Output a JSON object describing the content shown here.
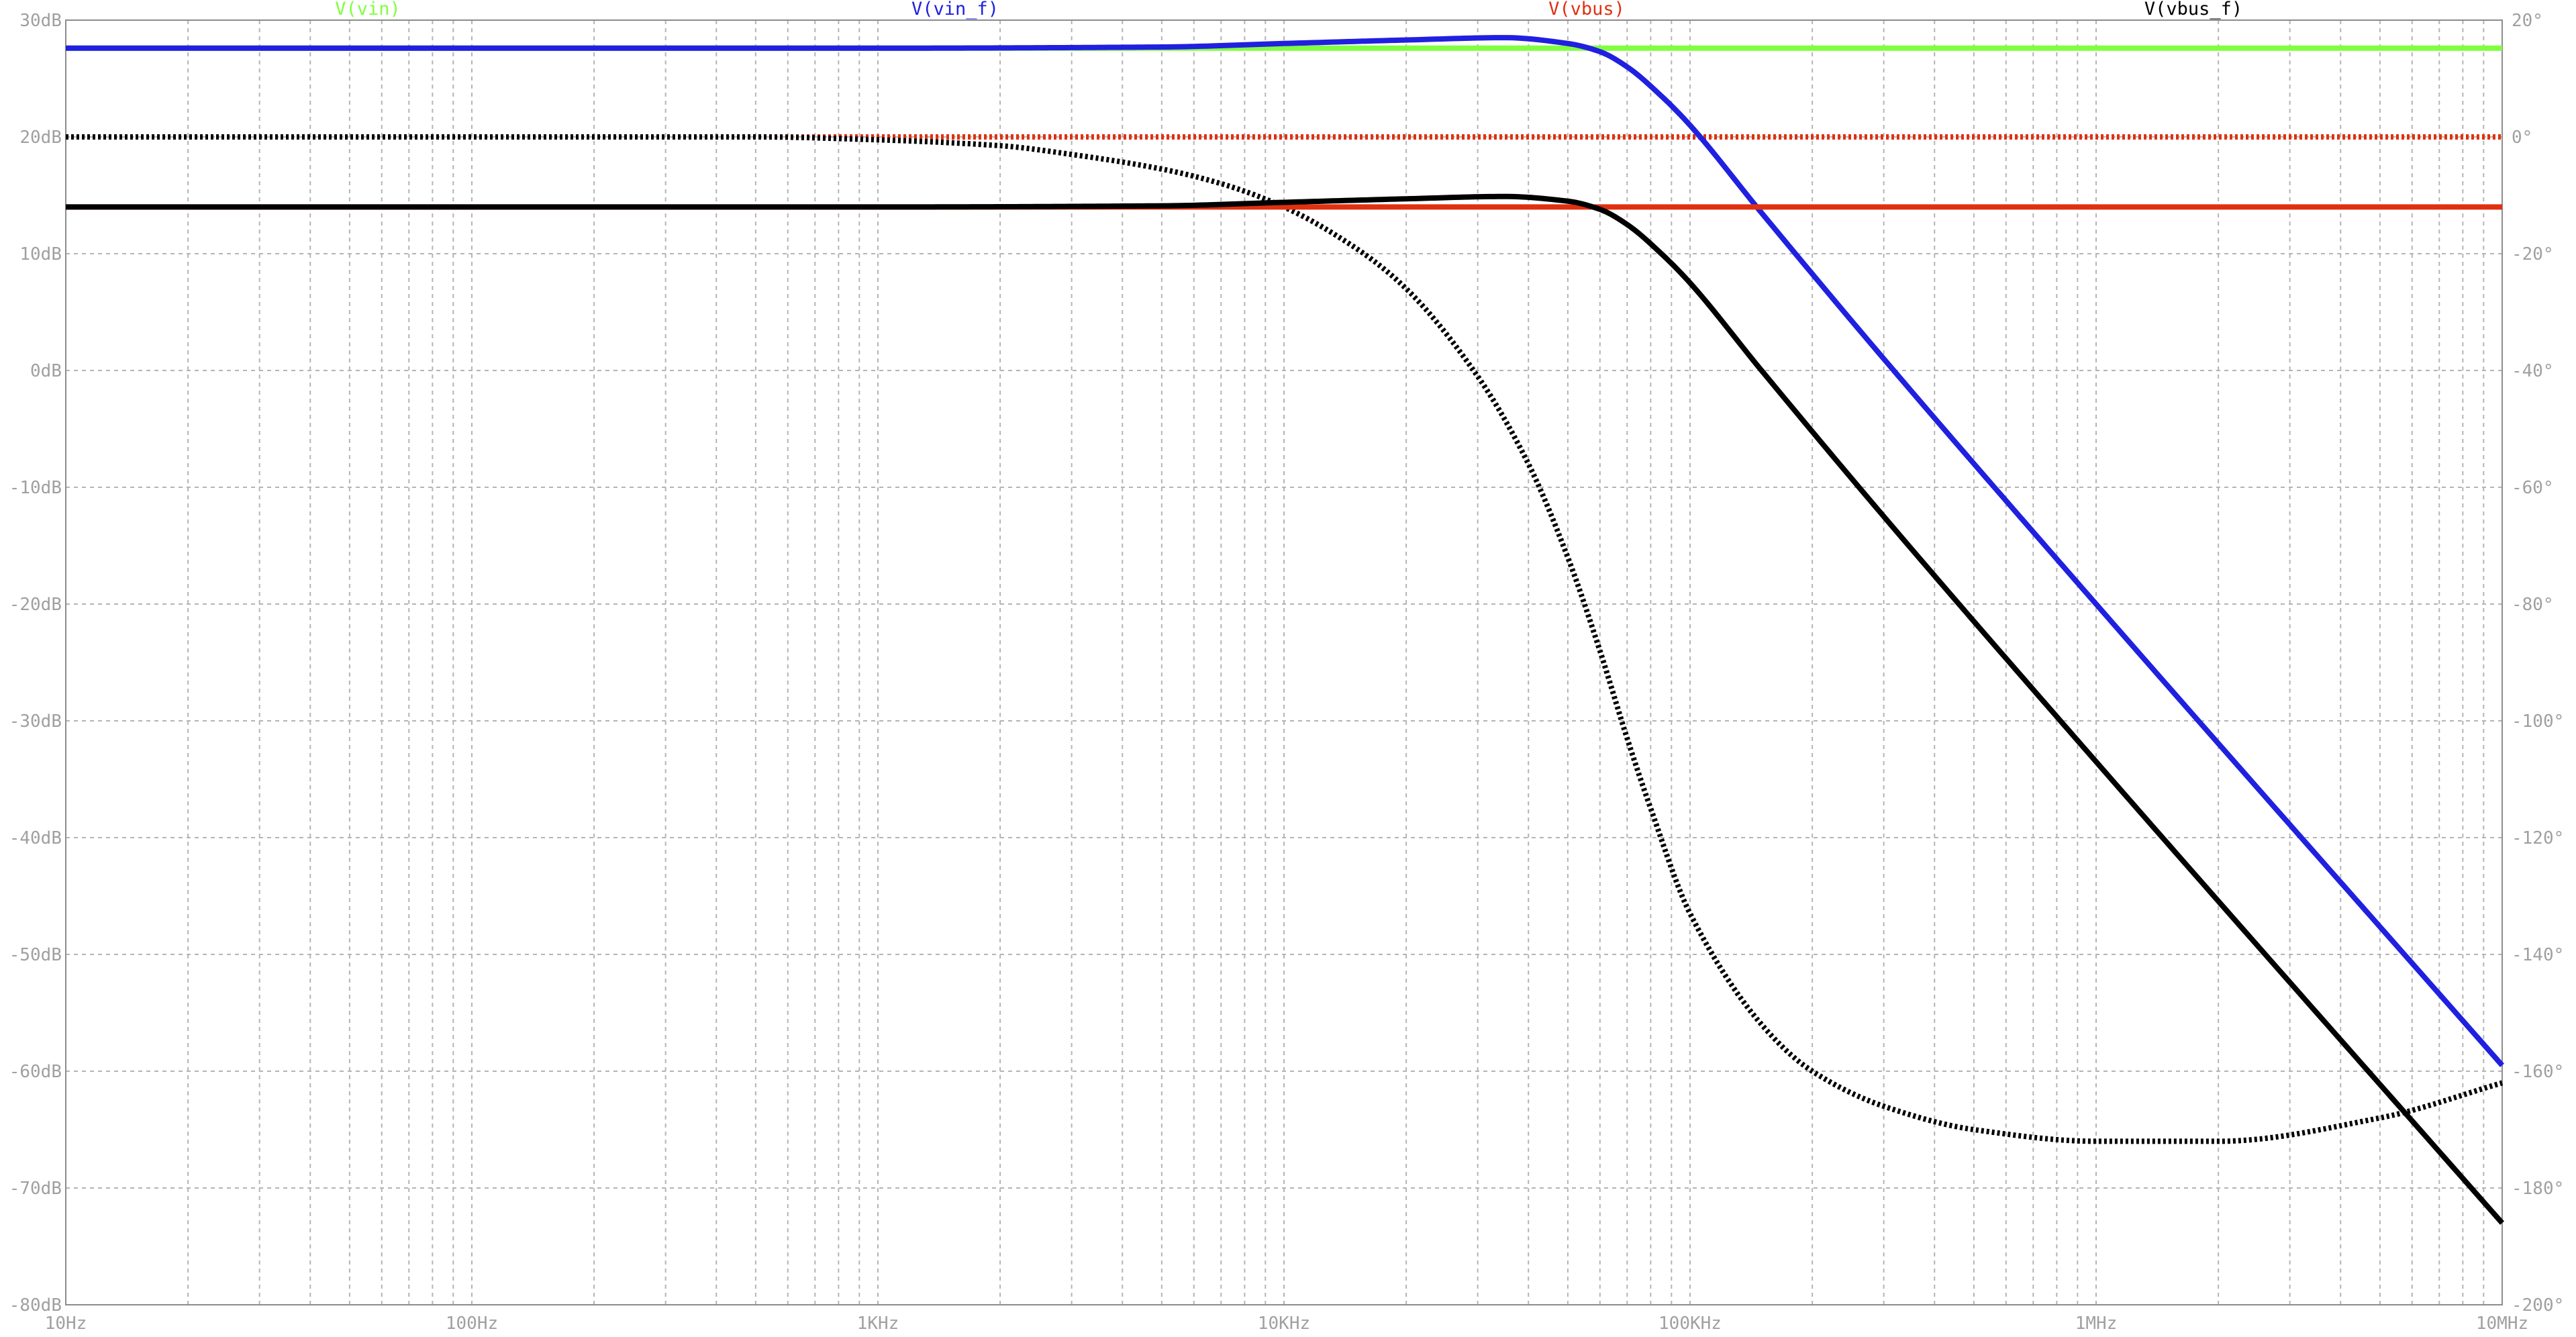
{
  "chart_data": {
    "type": "line",
    "x_scale": "log",
    "xlim": [
      10,
      10000000
    ],
    "y_left": {
      "unit": "dB",
      "range": [
        -80,
        30
      ]
    },
    "y_right": {
      "unit": "deg",
      "range": [
        -200,
        20
      ]
    },
    "grid": true,
    "legend_placement": "top",
    "x_ticks": [
      "10Hz",
      "100Hz",
      "1KHz",
      "10KHz",
      "100KHz",
      "1MHz",
      "10MHz"
    ],
    "y_left_ticks": [
      "30dB",
      "20dB",
      "10dB",
      "0dB",
      "-10dB",
      "-20dB",
      "-30dB",
      "-40dB",
      "-50dB",
      "-60dB",
      "-70dB",
      "-80dB"
    ],
    "y_right_ticks": [
      "20°",
      "0°",
      "-20°",
      "-40°",
      "-60°",
      "-80°",
      "-100°",
      "-120°",
      "-140°",
      "-160°",
      "-180°",
      "-200°"
    ],
    "series": [
      {
        "name": "V(vin)",
        "color": "#80ff40",
        "magnitude": {
          "x": [
            10,
            10000000
          ],
          "y": [
            27.6,
            27.6
          ]
        },
        "phase": {
          "x": [
            10,
            10000000
          ],
          "y": [
            0,
            0
          ]
        }
      },
      {
        "name": "V(vin_f)",
        "color": "#2020e0",
        "magnitude": {
          "x": [
            10,
            1000,
            5000,
            10000,
            20000,
            35000,
            50000,
            60000,
            70000,
            85000,
            100000,
            150000,
            300000,
            1000000,
            10000000
          ],
          "y": [
            27.6,
            27.6,
            27.7,
            28.0,
            28.3,
            28.5,
            28.0,
            27.3,
            26.0,
            23.5,
            21.0,
            13.5,
            1.0,
            -20.0,
            -59.5
          ]
        },
        "phase": {
          "x": [
            10,
            10000000
          ],
          "y": [
            0,
            0
          ]
        }
      },
      {
        "name": "V(vbus)",
        "color": "#e03010",
        "magnitude": {
          "x": [
            10,
            10000000
          ],
          "y": [
            14.0,
            14.0
          ]
        },
        "phase": {
          "x": [
            10,
            10000000
          ],
          "y": [
            0,
            0
          ]
        }
      },
      {
        "name": "V(vbus_f)",
        "color": "#000000",
        "magnitude": {
          "x": [
            10,
            1000,
            5000,
            10000,
            20000,
            35000,
            50000,
            60000,
            70000,
            85000,
            100000,
            150000,
            300000,
            1000000,
            10000000
          ],
          "y": [
            14.0,
            14.0,
            14.1,
            14.4,
            14.7,
            14.9,
            14.5,
            13.8,
            12.5,
            10.0,
            7.5,
            0.0,
            -12.5,
            -33.5,
            -73.0
          ]
        },
        "phase": {
          "x": [
            10,
            500,
            1000,
            2000,
            3000,
            5000,
            7000,
            10000,
            15000,
            20000,
            30000,
            40000,
            50000,
            60000,
            70000,
            80000,
            100000,
            150000,
            200000,
            300000,
            500000,
            1000000,
            2000000,
            5000000,
            10000000
          ],
          "y": [
            0,
            0,
            -0.5,
            -1.5,
            -3,
            -5.5,
            -8,
            -12,
            -19,
            -26,
            -41,
            -56,
            -72,
            -88,
            -103,
            -115,
            -133,
            -152,
            -160,
            -166,
            -170,
            -172,
            -172,
            -168,
            -162
          ]
        }
      }
    ]
  }
}
